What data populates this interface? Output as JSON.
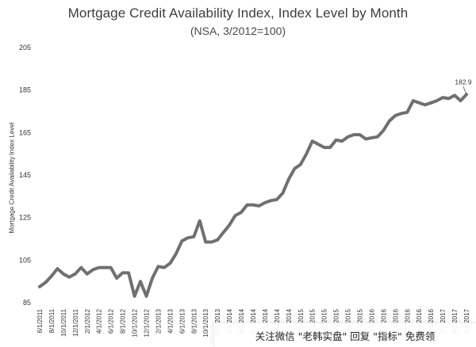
{
  "watermark": "关注微信 \"老韩实盘\" 回复 \"指标\" 免费领",
  "chart_data": {
    "type": "line",
    "title": "Mortgage Credit Availability Index, Index Level by Month",
    "subtitle": "(NSA, 3/2012=100)",
    "ylabel": "Mortgage Credit Availability Index Level",
    "xlabel": "",
    "ylim": [
      85,
      205
    ],
    "yticks": [
      85,
      105,
      125,
      145,
      165,
      185,
      205
    ],
    "grid": false,
    "line_color": "#707070",
    "end_label": "182.9",
    "x_tick_labels": [
      "6/1/2011",
      "8/1/2011",
      "10/1/2011",
      "12/1/2011",
      "2/1/2012",
      "4/1/2012",
      "6/1/2012",
      "8/1/2012",
      "10/1/2012",
      "12/1/2012",
      "2/1/2013",
      "4/1/2013",
      "6/1/2013",
      "8/1/2013",
      "10/1/2013",
      "12/1/2013",
      "2/1/2014",
      "4/1/2014",
      "6/1/2014",
      "8/1/2014",
      "10/1/2014",
      "12/1/2014",
      "2/1/2015",
      "4/1/2015",
      "6/1/2015",
      "8/1/2015",
      "10/1/2015",
      "12/1/2015",
      "2/1/2016",
      "4/1/2016",
      "6/1/2016",
      "8/1/2016",
      "10/1/2016",
      "12/1/2016",
      "2/1/2017",
      "4/1/2017",
      "6/1/2017",
      "8/1/2017",
      "10/1/2017"
    ],
    "series": [
      {
        "values": [
          92.5,
          94.5,
          97.5,
          101,
          98.5,
          97,
          98.5,
          101.5,
          98.5,
          100.5,
          101.5,
          101.5,
          101.5,
          96.5,
          99,
          99,
          88,
          95,
          88,
          96.5,
          102,
          101.5,
          103.5,
          108,
          114,
          115.5,
          116,
          123.5,
          113.5,
          113.5,
          114.5,
          118,
          121.5,
          126,
          127.5,
          131,
          131,
          130.5,
          132,
          133,
          133.5,
          136.5,
          143,
          148,
          150,
          155,
          161,
          159.5,
          158,
          158,
          161.5,
          161,
          163,
          164,
          164,
          162,
          162.5,
          163,
          166,
          170.5,
          173,
          174,
          174.5,
          180,
          179,
          178,
          179,
          180,
          181.5,
          181,
          182.5,
          180,
          182.9
        ]
      }
    ]
  }
}
